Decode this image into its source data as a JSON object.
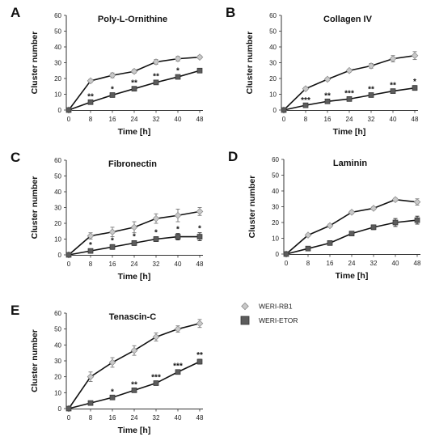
{
  "legend": [
    {
      "name": "WERI-RB1",
      "marker": "diamond",
      "color": "#c9c9c9"
    },
    {
      "name": "WERI-ETOR",
      "marker": "square",
      "color": "#5c5c5c"
    }
  ],
  "chart_data": [
    {
      "type": "line",
      "letter": "A",
      "title": "Poly-L-Ornithine",
      "xlabel": "Time [h]",
      "ylabel": "Cluster number",
      "x": [
        0,
        8,
        16,
        24,
        32,
        40,
        48
      ],
      "ylim": [
        0,
        60
      ],
      "yticks": [
        0,
        10,
        20,
        30,
        40,
        50,
        60
      ],
      "series": [
        {
          "name": "WERI-RB1",
          "values": [
            0,
            18.5,
            22,
            24.5,
            30.5,
            32.5,
            33.5
          ],
          "err": [
            0,
            1,
            1.5,
            1.2,
            1.5,
            1.5,
            1
          ]
        },
        {
          "name": "WERI-ETOR",
          "values": [
            0,
            5,
            9.5,
            13.5,
            17.5,
            21,
            25
          ],
          "err": [
            0,
            0.8,
            1,
            1,
            1.2,
            1.2,
            1.2
          ]
        }
      ],
      "significance": [
        "",
        "**",
        "*",
        "**",
        "**",
        "*",
        ""
      ]
    },
    {
      "type": "line",
      "letter": "B",
      "title": "Collagen IV",
      "xlabel": "Time [h]",
      "ylabel": "Cluster number",
      "x": [
        0,
        8,
        16,
        24,
        32,
        40,
        48
      ],
      "ylim": [
        0,
        60
      ],
      "yticks": [
        0,
        10,
        20,
        30,
        40,
        50,
        60
      ],
      "series": [
        {
          "name": "WERI-RB1",
          "values": [
            0,
            13.5,
            19.5,
            25,
            28,
            32.5,
            34.5
          ],
          "err": [
            0,
            1,
            1,
            1,
            1.5,
            2,
            2.5
          ]
        },
        {
          "name": "WERI-ETOR",
          "values": [
            0,
            3,
            5.5,
            7,
            9.5,
            12,
            14
          ],
          "err": [
            0,
            0.5,
            0.8,
            1,
            1,
            1,
            1.5
          ]
        }
      ],
      "significance": [
        "",
        "***",
        "**",
        "***",
        "**",
        "**",
        "*"
      ]
    },
    {
      "type": "line",
      "letter": "C",
      "title": "Fibronectin",
      "xlabel": "Time [h]",
      "ylabel": "Cluster number",
      "x": [
        0,
        8,
        16,
        24,
        32,
        40,
        48
      ],
      "ylim": [
        0,
        60
      ],
      "yticks": [
        0,
        10,
        20,
        30,
        40,
        50,
        60
      ],
      "series": [
        {
          "name": "WERI-RB1",
          "values": [
            0,
            12,
            14.5,
            17.5,
            23,
            25,
            27.5
          ],
          "err": [
            0,
            2,
            3,
            3.5,
            3,
            4,
            2.5
          ]
        },
        {
          "name": "WERI-ETOR",
          "values": [
            0,
            2.5,
            5,
            7.5,
            10,
            11.5,
            11.5
          ],
          "err": [
            0,
            1,
            1.5,
            1.5,
            1.5,
            2,
            2.5
          ]
        }
      ],
      "significance": [
        "",
        "*",
        "*",
        "*",
        "*",
        "*",
        "*"
      ]
    },
    {
      "type": "line",
      "letter": "D",
      "title": "Laminin",
      "xlabel": "Time [h]",
      "ylabel": "Cluster number",
      "x": [
        0,
        8,
        16,
        24,
        32,
        40,
        48
      ],
      "ylim": [
        0,
        60
      ],
      "yticks": [
        0,
        10,
        20,
        30,
        40,
        50,
        60
      ],
      "series": [
        {
          "name": "WERI-RB1",
          "values": [
            0,
            12,
            18,
            26.5,
            29,
            34.5,
            33
          ],
          "err": [
            0,
            0.8,
            1,
            1,
            1,
            1,
            2
          ]
        },
        {
          "name": "WERI-ETOR",
          "values": [
            0,
            3.5,
            7,
            13,
            17,
            20,
            21.5
          ],
          "err": [
            0,
            0.8,
            1,
            1,
            1.5,
            2.5,
            2.5
          ]
        }
      ],
      "significance": [
        "",
        "",
        "",
        "",
        "",
        "",
        ""
      ]
    },
    {
      "type": "line",
      "letter": "E",
      "title": "Tenascin-C",
      "xlabel": "Time [h]",
      "ylabel": "Cluster number",
      "x": [
        0,
        8,
        16,
        24,
        32,
        40,
        48
      ],
      "ylim": [
        0,
        60
      ],
      "yticks": [
        0,
        10,
        20,
        30,
        40,
        50,
        60
      ],
      "series": [
        {
          "name": "WERI-RB1",
          "values": [
            0,
            20,
            29,
            36.5,
            45,
            50,
            53.5
          ],
          "err": [
            0,
            3,
            3,
            3,
            2.5,
            2,
            2.5
          ]
        },
        {
          "name": "WERI-ETOR",
          "values": [
            0,
            3.5,
            7,
            11.5,
            16,
            23,
            29.5
          ],
          "err": [
            0,
            0.8,
            1,
            1,
            1,
            1.2,
            1.5
          ]
        }
      ],
      "significance": [
        "",
        "",
        "*",
        "**",
        "***",
        "***",
        "**"
      ]
    }
  ]
}
